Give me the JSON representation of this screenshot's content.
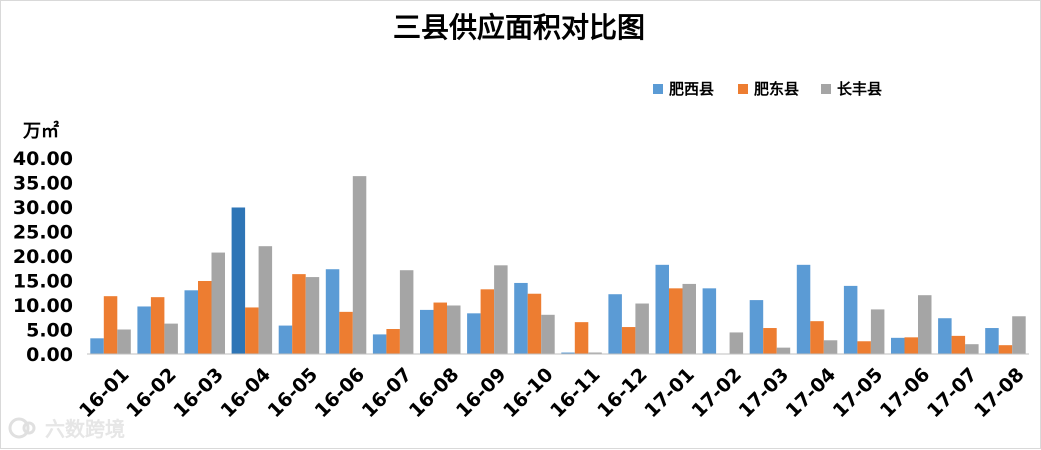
{
  "chart_data": {
    "type": "bar",
    "title": "三县供应面积对比图",
    "unit_label": "万㎡",
    "ylim": [
      0,
      40
    ],
    "yticks": [
      "0.00",
      "5.00",
      "10.00",
      "15.00",
      "20.00",
      "25.00",
      "30.00",
      "35.00",
      "40.00"
    ],
    "grid": false,
    "legend_position": "top-right",
    "categories": [
      "16-01",
      "16-02",
      "16-03",
      "16-04",
      "16-05",
      "16-06",
      "16-07",
      "16-08",
      "16-09",
      "16-10",
      "16-11",
      "16-12",
      "17-01",
      "17-02",
      "17-03",
      "17-04",
      "17-05",
      "17-06",
      "17-07",
      "17-08"
    ],
    "series": [
      {
        "name": "肥西县",
        "color": "#5b9bd5",
        "values": [
          3.2,
          9.7,
          13.0,
          29.9,
          5.8,
          17.3,
          4.0,
          9.0,
          8.3,
          14.5,
          0.3,
          12.2,
          18.2,
          13.4,
          11.0,
          18.2,
          13.9,
          3.3,
          7.3,
          5.3
        ]
      },
      {
        "name": "肥东县",
        "color": "#ed7d31",
        "values": [
          11.8,
          11.6,
          14.9,
          9.5,
          16.3,
          8.6,
          5.1,
          10.5,
          13.2,
          12.3,
          6.5,
          5.5,
          13.4,
          0.0,
          5.3,
          6.7,
          2.6,
          3.4,
          3.7,
          1.8
        ]
      },
      {
        "name": "长丰县",
        "color": "#a5a5a5",
        "values": [
          5.0,
          6.2,
          20.7,
          22.0,
          15.7,
          36.3,
          17.1,
          9.9,
          18.1,
          8.0,
          0.3,
          10.3,
          14.3,
          4.4,
          1.3,
          2.8,
          9.1,
          12.0,
          2.0,
          7.7
        ]
      }
    ],
    "highlight": {
      "category_index": 3,
      "series_index": 0,
      "color": "#2e75b6"
    }
  },
  "watermark": {
    "text": "六数跨境",
    "icon": "brand-logo-icon"
  }
}
